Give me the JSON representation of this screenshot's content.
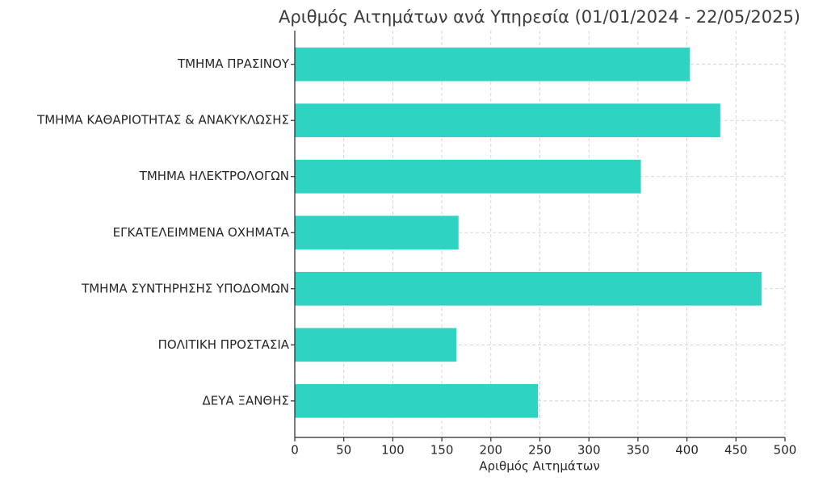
{
  "chart_data": {
    "type": "barh",
    "title": "Αριθμός Αιτημάτων ανά Υπηρεσία (01/01/2024 - 22/05/2025)",
    "x_label": "Αριθμός Αιτημάτων",
    "categories": [
      "ΤΜΗΜΑ ΠΡΑΣΙΝΟΥ",
      "ΤΜΗΜΑ ΚΑΘΑΡΙΟΤΗΤΑΣ & ΑΝΑΚΥΚΛΩΣΗΣ",
      "ΤΜΗΜΑ ΗΛΕΚΤΡΟΛΟΓΩΝ",
      "ΕΓΚΑΤΕΛΕΙΜΜΕΝΑ ΟΧΗΜΑΤΑ",
      "ΤΜΗΜΑ ΣΥΝΤΗΡΗΣΗΣ ΥΠΟΔΟΜΩΝ",
      "ΠΟΛΙΤΙΚΗ ΠΡΟΣΤΑΣΙΑ",
      "ΔΕΥΑ ΞΑΝΘΗΣ"
    ],
    "values": [
      403,
      434,
      353,
      167,
      476,
      165,
      248
    ],
    "color": "#2ed3c1",
    "xlim": [
      0,
      500
    ],
    "xticks": [
      0,
      50,
      100,
      150,
      200,
      250,
      300,
      350,
      400,
      450,
      500
    ],
    "grid": true
  }
}
